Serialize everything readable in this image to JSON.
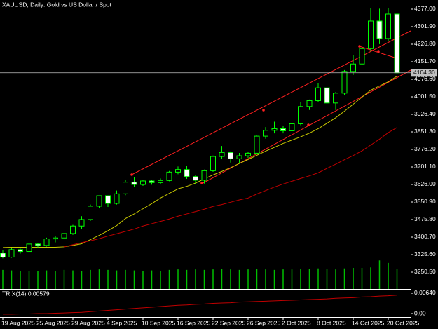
{
  "chart_data": {
    "type": "candlestick",
    "title": "XAUUSD, Daily:  Gold vs US Dollar / Spot",
    "categories": [
      "19 Aug 2025",
      null,
      null,
      null,
      "25 Aug 2025",
      null,
      null,
      null,
      "29 Aug 2025",
      null,
      null,
      null,
      "4 Sep 2025",
      null,
      null,
      null,
      "10 Sep 2025",
      null,
      null,
      null,
      "16 Sep 2025",
      null,
      null,
      null,
      "22 Sep 2025",
      null,
      null,
      null,
      "26 Sep 2025",
      null,
      null,
      null,
      "2 Oct 2025",
      null,
      null,
      null,
      "8 Oct 2025",
      null,
      null,
      null,
      "14 Oct 2025",
      null,
      null,
      null,
      "20 Oct 2025",
      null
    ],
    "open": [
      3332,
      3315,
      3347,
      3339,
      3371,
      3365,
      3393,
      3397,
      3416,
      3448,
      3476,
      3533,
      3578,
      3545,
      3586,
      3636,
      3626,
      3641,
      3634,
      3643,
      3679,
      3690,
      3660,
      3644,
      3685,
      3746,
      3763,
      3736,
      3749,
      3760,
      3833,
      3858,
      3865,
      3856,
      3886,
      3960,
      3985,
      4040,
      3975,
      4017,
      4110,
      4142,
      4208,
      4326,
      4251,
      4356
    ],
    "high": [
      3345,
      3355,
      3351,
      3379,
      3376,
      3398,
      3405,
      3423,
      3453,
      3490,
      3540,
      3579,
      3578,
      3600,
      3647,
      3659,
      3645,
      3646,
      3652,
      3684,
      3703,
      3707,
      3668,
      3690,
      3750,
      3791,
      3768,
      3761,
      3765,
      3835,
      3872,
      3895,
      3876,
      3889,
      3978,
      3990,
      4059,
      4045,
      4022,
      4116,
      4179,
      4218,
      4380,
      4379,
      4381,
      4381
    ],
    "low": [
      3310,
      3312,
      3330,
      3334,
      3356,
      3360,
      3378,
      3390,
      3410,
      3436,
      3470,
      3525,
      3530,
      3540,
      3580,
      3615,
      3620,
      3625,
      3628,
      3640,
      3670,
      3650,
      3628,
      3630,
      3680,
      3735,
      3720,
      3718,
      3740,
      3755,
      3822,
      3845,
      3845,
      3850,
      3880,
      3945,
      3978,
      3945,
      3945,
      4008,
      4095,
      4125,
      4196,
      4227,
      4240,
      4082
    ],
    "close": [
      3315,
      3347,
      3339,
      3371,
      3365,
      3393,
      3397,
      3416,
      3448,
      3476,
      3533,
      3578,
      3545,
      3586,
      3636,
      3626,
      3641,
      3634,
      3643,
      3679,
      3690,
      3660,
      3644,
      3685,
      3746,
      3763,
      3736,
      3749,
      3760,
      3833,
      3858,
      3865,
      3856,
      3886,
      3960,
      3985,
      4040,
      3975,
      4017,
      4110,
      4142,
      4208,
      4326,
      4251,
      4356,
      4104.3
    ],
    "ylim": [
      3178.4,
      4416.05
    ],
    "yticks": [
      {
        "value": 4377,
        "label": "4377.00"
      },
      {
        "value": 4301.9,
        "label": "4301.90"
      },
      {
        "value": 4226.8,
        "label": "4226.80"
      },
      {
        "value": 4151.7,
        "label": "4151.70"
      },
      {
        "value": 4076.6,
        "label": "4076.60"
      },
      {
        "value": 4001.5,
        "label": "4001.50"
      },
      {
        "value": 3926.4,
        "label": "3926.40"
      },
      {
        "value": 3851.3,
        "label": "3851.30"
      },
      {
        "value": 3776.2,
        "label": "3776.20"
      },
      {
        "value": 3701.1,
        "label": "3701.10"
      },
      {
        "value": 3626,
        "label": "3626.00"
      },
      {
        "value": 3550.9,
        "label": "3550.90"
      },
      {
        "value": 3475.8,
        "label": "3475.80"
      },
      {
        "value": 3400.7,
        "label": "3400.70"
      },
      {
        "value": 3325.6,
        "label": "3325.60"
      },
      {
        "value": 3250.5,
        "label": "3250.50"
      }
    ],
    "last_price": {
      "value": 4104.3,
      "label": "4104.30"
    },
    "up_color": "#000000",
    "down_color": "#ffffff",
    "candle_stroke": "#00ff00",
    "volumes": [
      190000,
      185000,
      180000,
      175000,
      180000,
      185000,
      180000,
      190000,
      185000,
      180000,
      190000,
      195000,
      190000,
      185000,
      190000,
      185000,
      180000,
      185000,
      180000,
      190000,
      195000,
      190000,
      195000,
      190000,
      195000,
      200000,
      195000,
      190000,
      195000,
      200000,
      195000,
      190000,
      195000,
      195000,
      200000,
      200000,
      205000,
      200000,
      195000,
      205000,
      210000,
      210000,
      215000,
      285000,
      260000,
      200000
    ],
    "volume_color": "#00c000",
    "overlays": [
      {
        "color": "#c8c800",
        "values": [
          3356,
          3357,
          3357,
          3357,
          3357,
          3357,
          3357,
          3359,
          3365,
          3372,
          3390,
          3408,
          3428,
          3450,
          3480,
          3500,
          3522,
          3544,
          3568,
          3588,
          3607,
          3618,
          3632,
          3650,
          3667,
          3682,
          3698,
          3716,
          3733,
          3751,
          3769,
          3785,
          3802,
          3816,
          3830,
          3846,
          3865,
          3888,
          3912,
          3940,
          3970,
          4000,
          4030,
          4048,
          4066,
          4090
        ]
      },
      {
        "color": "#c00000",
        "values": [
          null,
          null,
          null,
          null,
          null,
          null,
          null,
          3359,
          3368,
          3377,
          3385,
          3394,
          3405,
          3415,
          3425,
          3435,
          3448,
          3458,
          3468,
          3478,
          3490,
          3500,
          3510,
          3520,
          3532,
          3540,
          3550,
          3560,
          3568,
          3585,
          3600,
          3615,
          3628,
          3640,
          3652,
          3663,
          3676,
          3695,
          3713,
          3732,
          3750,
          3770,
          3795,
          3820,
          3848,
          3870
        ]
      }
    ],
    "trix": {
      "label": "TRIX(14) 0.00579",
      "color": "#c00000",
      "ylim": [
        -0.0011,
        0.0075
      ],
      "yticks": [
        {
          "value": 0.0064,
          "label": "0.00640"
        },
        {
          "value": 0,
          "label": "0.00"
        }
      ],
      "values": [
        -0.0002,
        -0.0002,
        -0.0001,
        -0.0001,
        0,
        0,
        0.0001,
        0.0002,
        0.0003,
        0.0004,
        0.0006,
        0.0008,
        0.001,
        0.0012,
        0.0014,
        0.0016,
        0.0018,
        0.002,
        0.0022,
        0.0024,
        0.0026,
        0.0027,
        0.0029,
        0.003,
        0.0032,
        0.0033,
        0.0034,
        0.0036,
        0.0037,
        0.0038,
        0.0039,
        0.004,
        0.0041,
        0.0042,
        0.0043,
        0.0044,
        0.0045,
        0.0046,
        0.0048,
        0.0049,
        0.005,
        0.0052,
        0.0053,
        0.0055,
        0.0056,
        0.00579
      ]
    }
  }
}
